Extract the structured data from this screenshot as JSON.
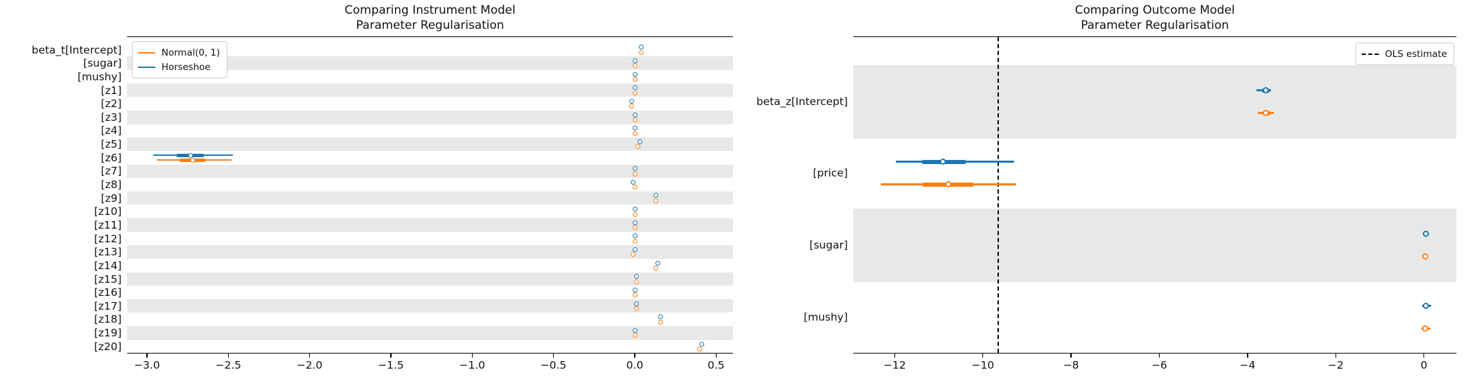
{
  "colors": {
    "horseshoe": "#1f77b4",
    "normal": "#ff7f0e",
    "band": "#e8e8e8",
    "spine": "#000000",
    "ols_line": "#000000"
  },
  "chart_data": [
    {
      "type": "forest",
      "title": "Comparing Instrument Model\nParameter Regularisation",
      "legend": {
        "position": "upper-left",
        "items": [
          {
            "label": "Normal(0, 1)",
            "color": "#ff7f0e",
            "style": "solid"
          },
          {
            "label": "Horseshoe",
            "color": "#1f77b4",
            "style": "solid"
          }
        ]
      },
      "x_axis": {
        "xlim": [
          -3.12,
          0.6
        ],
        "ticks": [
          -3.0,
          -2.5,
          -2.0,
          -1.5,
          -1.0,
          -0.5,
          0.0,
          0.5
        ],
        "tick_labels": [
          "−3.0",
          "−2.5",
          "−2.0",
          "−1.5",
          "−1.0",
          "−0.5",
          "0.0",
          "0.5"
        ]
      },
      "rows": [
        {
          "label": "beta_t[Intercept]",
          "shaded": false,
          "horseshoe": {
            "value": 0.04
          },
          "normal": {
            "value": 0.04
          }
        },
        {
          "label": "[sugar]",
          "shaded": true,
          "horseshoe": {
            "value": 0.0
          },
          "normal": {
            "value": 0.0
          }
        },
        {
          "label": "[mushy]",
          "shaded": false,
          "horseshoe": {
            "value": 0.0
          },
          "normal": {
            "value": 0.0
          }
        },
        {
          "label": "[z1]",
          "shaded": true,
          "horseshoe": {
            "value": 0.0
          },
          "normal": {
            "value": 0.0
          }
        },
        {
          "label": "[z2]",
          "shaded": false,
          "horseshoe": {
            "value": -0.02
          },
          "normal": {
            "value": -0.02
          }
        },
        {
          "label": "[z3]",
          "shaded": true,
          "horseshoe": {
            "value": 0.0
          },
          "normal": {
            "value": 0.0
          }
        },
        {
          "label": "[z4]",
          "shaded": false,
          "horseshoe": {
            "value": 0.0
          },
          "normal": {
            "value": 0.0
          }
        },
        {
          "label": "[z5]",
          "shaded": true,
          "horseshoe": {
            "value": 0.03
          },
          "normal": {
            "value": 0.02
          }
        },
        {
          "label": "[z6]",
          "shaded": false,
          "horseshoe": {
            "value": -2.73,
            "lo": -2.96,
            "hi": -2.47,
            "thick_lo": -2.82,
            "thick_hi": -2.65
          },
          "normal": {
            "value": -2.72,
            "lo": -2.94,
            "hi": -2.48,
            "thick_lo": -2.8,
            "thick_hi": -2.64
          }
        },
        {
          "label": "[z7]",
          "shaded": true,
          "horseshoe": {
            "value": 0.0
          },
          "normal": {
            "value": 0.0
          }
        },
        {
          "label": "[z8]",
          "shaded": false,
          "horseshoe": {
            "value": -0.01
          },
          "normal": {
            "value": 0.0
          }
        },
        {
          "label": "[z9]",
          "shaded": true,
          "horseshoe": {
            "value": 0.13
          },
          "normal": {
            "value": 0.13
          }
        },
        {
          "label": "[z10]",
          "shaded": false,
          "horseshoe": {
            "value": 0.0
          },
          "normal": {
            "value": 0.0
          }
        },
        {
          "label": "[z11]",
          "shaded": true,
          "horseshoe": {
            "value": 0.0
          },
          "normal": {
            "value": 0.0
          }
        },
        {
          "label": "[z12]",
          "shaded": false,
          "horseshoe": {
            "value": 0.0
          },
          "normal": {
            "value": 0.0
          }
        },
        {
          "label": "[z13]",
          "shaded": true,
          "horseshoe": {
            "value": 0.0
          },
          "normal": {
            "value": -0.01
          }
        },
        {
          "label": "[z14]",
          "shaded": false,
          "horseshoe": {
            "value": 0.14
          },
          "normal": {
            "value": 0.13
          }
        },
        {
          "label": "[z15]",
          "shaded": true,
          "horseshoe": {
            "value": 0.01
          },
          "normal": {
            "value": 0.01
          }
        },
        {
          "label": "[z16]",
          "shaded": false,
          "horseshoe": {
            "value": 0.0
          },
          "normal": {
            "value": 0.0
          }
        },
        {
          "label": "[z17]",
          "shaded": true,
          "horseshoe": {
            "value": 0.01
          },
          "normal": {
            "value": 0.01
          }
        },
        {
          "label": "[z18]",
          "shaded": false,
          "horseshoe": {
            "value": 0.16
          },
          "normal": {
            "value": 0.16
          }
        },
        {
          "label": "[z19]",
          "shaded": true,
          "horseshoe": {
            "value": 0.0
          },
          "normal": {
            "value": 0.0
          }
        },
        {
          "label": "[z20]",
          "shaded": false,
          "horseshoe": {
            "value": 0.41
          },
          "normal": {
            "value": 0.4
          }
        }
      ]
    },
    {
      "type": "forest",
      "title": "Comparing Outcome Model\nParameter Regularisation",
      "legend": {
        "position": "upper-right",
        "items": [
          {
            "label": "OLS estimate",
            "color": "#000000",
            "style": "dashed"
          }
        ]
      },
      "ols_estimate": -9.65,
      "x_axis": {
        "xlim": [
          -12.94,
          0.74
        ],
        "ticks": [
          -12,
          -10,
          -8,
          -6,
          -4,
          -2,
          0
        ],
        "tick_labels": [
          "−12",
          "−10",
          "−8",
          "−6",
          "−4",
          "−2",
          "0"
        ]
      },
      "rows": [
        {
          "label": "beta_z[Intercept]",
          "shaded": true,
          "horseshoe": {
            "value": -3.58,
            "lo": -3.8,
            "hi": -3.47,
            "thick_lo": -3.67,
            "thick_hi": -3.5
          },
          "normal": {
            "value": -3.58,
            "lo": -3.77,
            "hi": -3.41,
            "thick_lo": -3.66,
            "thick_hi": -3.49
          }
        },
        {
          "label": "[price]",
          "shaded": false,
          "horseshoe": {
            "value": -10.9,
            "lo": -11.98,
            "hi": -9.3,
            "thick_lo": -11.38,
            "thick_hi": -10.38
          },
          "normal": {
            "value": -10.79,
            "lo": -12.31,
            "hi": -9.24,
            "thick_lo": -11.36,
            "thick_hi": -10.22
          }
        },
        {
          "label": "[sugar]",
          "shaded": true,
          "horseshoe": {
            "value": 0.04
          },
          "normal": {
            "value": 0.03
          }
        },
        {
          "label": "[mushy]",
          "shaded": false,
          "horseshoe": {
            "value": 0.04,
            "lo": -0.05,
            "hi": 0.16
          },
          "normal": {
            "value": 0.03,
            "lo": -0.06,
            "hi": 0.14
          }
        }
      ]
    }
  ]
}
